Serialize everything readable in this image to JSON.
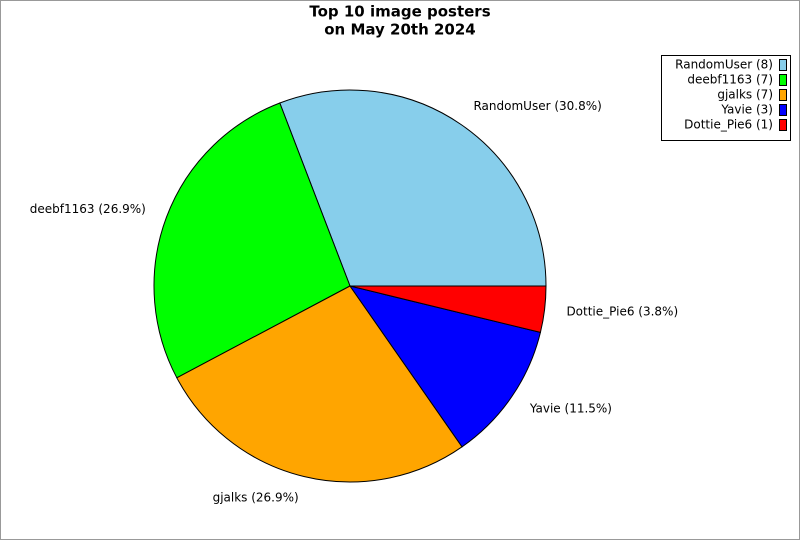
{
  "chart_data": {
    "type": "pie",
    "title": [
      "Top 10 image posters",
      "on May 20th 2024"
    ],
    "categories": [
      "RandomUser",
      "deebf1163",
      "gjalks",
      "Yavie",
      "Dottie_Pie6"
    ],
    "values": [
      30.8,
      26.9,
      26.9,
      11.5,
      3.8
    ],
    "value_labels": [
      "RandomUser (30.8%)",
      "deebf1163 (26.9%)",
      "gjalks (26.9%)",
      "Yavie (11.5%)",
      "Dottie_Pie6 (3.8%)"
    ],
    "legend_labels": [
      "RandomUser (8)",
      "deebf1163 (7)",
      "gjalks (7)",
      "Yavie (3)",
      "Dottie_Pie6 (1)"
    ],
    "colors": [
      "#87ceeb",
      "#00ff00",
      "#ffa500",
      "#0000ff",
      "#ff0000"
    ],
    "legend": "upper-right"
  }
}
